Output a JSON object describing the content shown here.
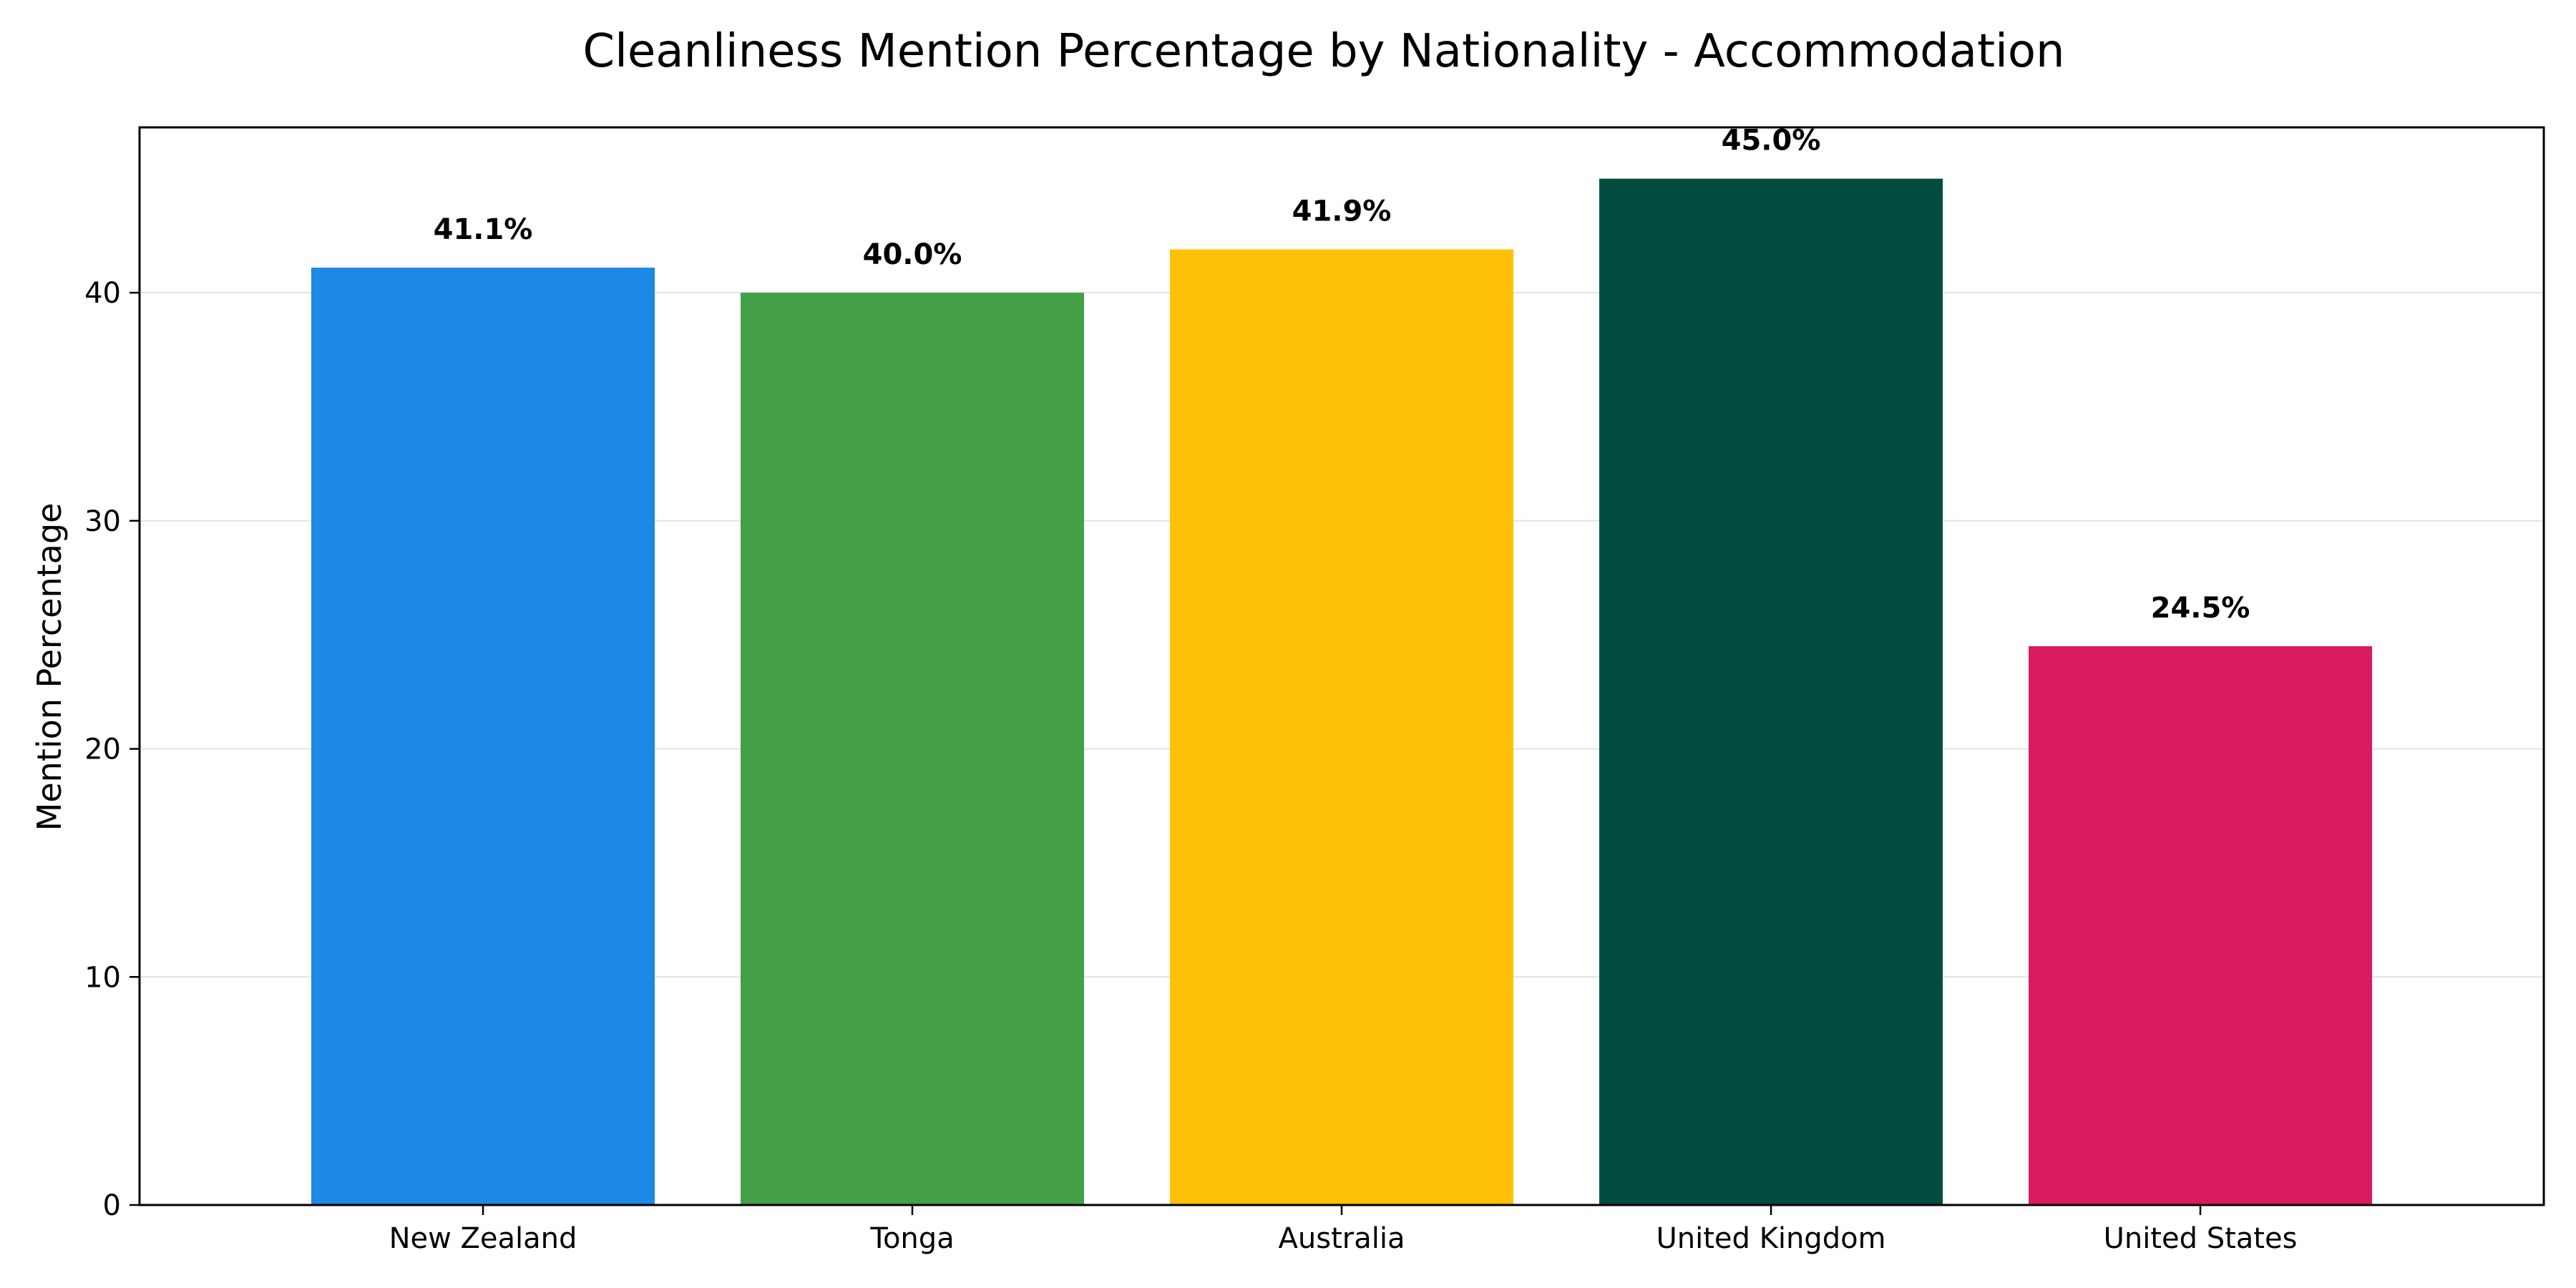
{
  "chart_data": {
    "type": "bar",
    "title": "Cleanliness Mention Percentage by Nationality - Accommodation",
    "xlabel": "",
    "ylabel": "Mention Percentage",
    "categories": [
      "New Zealand",
      "Tonga",
      "Australia",
      "United Kingdom",
      "United States"
    ],
    "values": [
      41.1,
      40.0,
      41.9,
      45.0,
      24.5
    ],
    "value_labels": [
      "41.1%",
      "40.0%",
      "41.9%",
      "45.0%",
      "24.5%"
    ],
    "colors": [
      "#1e88e5",
      "#43a047",
      "#ffc107",
      "#004d40",
      "#d81b60"
    ],
    "ylim": [
      0,
      47.25
    ],
    "yticks": [
      0,
      10,
      20,
      30,
      40
    ],
    "grid": "y",
    "legend": "none"
  }
}
